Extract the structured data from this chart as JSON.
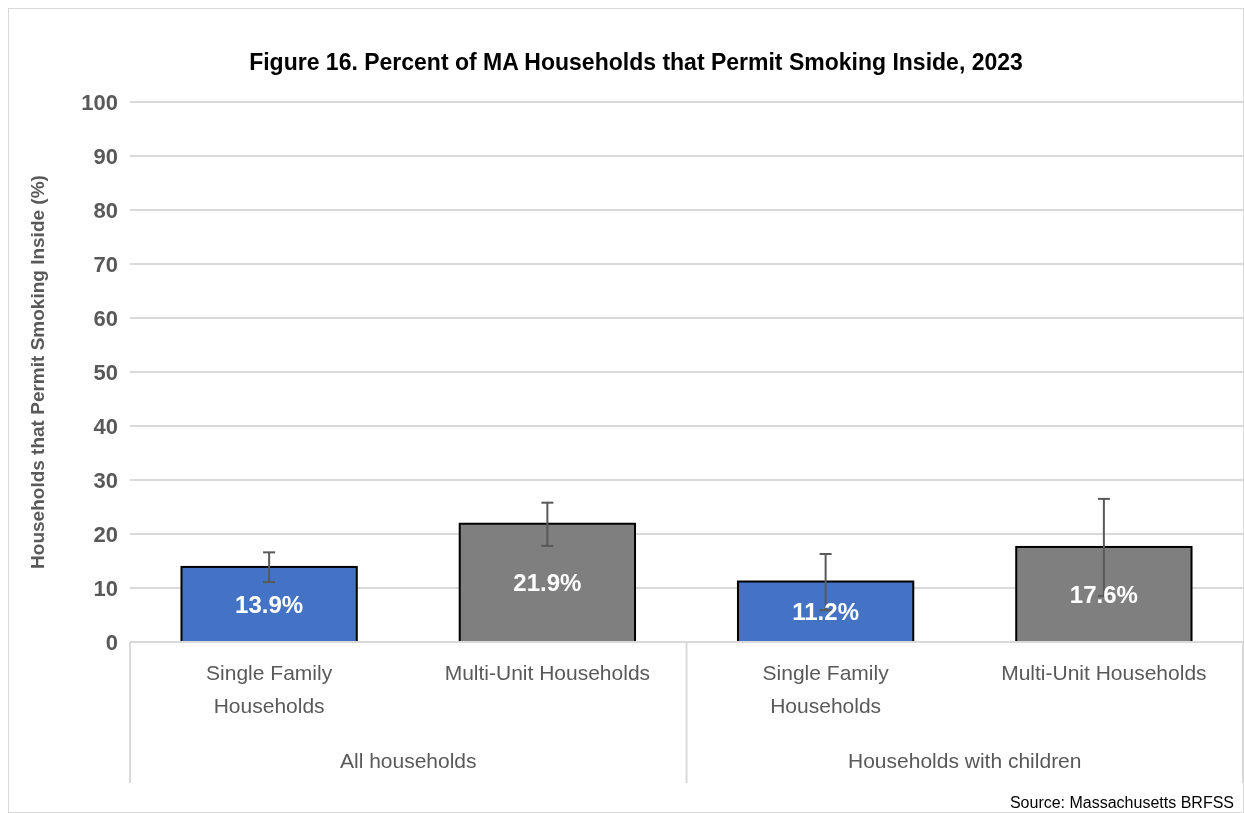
{
  "chart_data": {
    "type": "bar",
    "title": "Figure 16. Percent of MA Households that Permit Smoking Inside, 2023",
    "ylabel": "Households that Permit Smoking Inside (%)",
    "categories": [
      "Single Family Households",
      "Multi-Unit Households",
      "Single Family Households",
      "Multi-Unit Households"
    ],
    "values": [
      13.9,
      21.9,
      11.2,
      17.6
    ],
    "colors": [
      "#4472c4",
      "#7f7f7f",
      "#4472c4",
      "#7f7f7f"
    ],
    "errors": [
      [
        11.1,
        16.6
      ],
      [
        17.8,
        25.8
      ],
      [
        5.9,
        16.3
      ],
      [
        8.5,
        26.5
      ]
    ],
    "value_labels": [
      "13.9%",
      "21.9%",
      "11.2%",
      "17.6%"
    ],
    "ylim": [
      0,
      100
    ],
    "yticks": [
      0,
      10,
      20,
      30,
      40,
      50,
      60,
      70,
      80,
      90,
      100
    ],
    "grid": "y",
    "annotations": [
      "All households",
      "Households with children",
      "Source: Massachusetts BRFSS"
    ]
  }
}
